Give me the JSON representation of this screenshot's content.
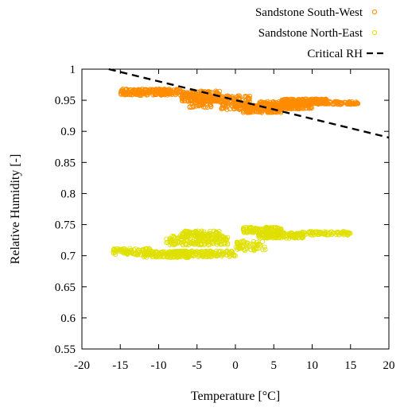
{
  "chart_data": {
    "type": "scatter",
    "xlabel": "Temperature [°C]",
    "ylabel": "Relative Humidity [-]",
    "xlim": [
      -20,
      20
    ],
    "ylim": [
      0.55,
      1.0
    ],
    "x_ticks": [
      -20,
      -15,
      -10,
      -5,
      0,
      5,
      10,
      15,
      20
    ],
    "y_ticks": [
      0.55,
      0.6,
      0.65,
      0.7,
      0.75,
      0.8,
      0.85,
      0.9,
      0.95,
      1
    ],
    "x_tick_labels": [
      "-20",
      "-15",
      "-10",
      "-5",
      "0",
      "5",
      "10",
      "15",
      "20"
    ],
    "y_tick_labels": [
      "0.55",
      "0.6",
      "0.65",
      "0.7",
      "0.75",
      "0.8",
      "0.85",
      "0.9",
      "0.95",
      "1"
    ],
    "grid": false,
    "legend_position": "top-right, outside plot",
    "series": [
      {
        "name": "Sandstone South-West",
        "color": "#ff8c00",
        "marker": "open-circle",
        "clusters": [
          {
            "x": [
              -15,
              -7
            ],
            "y": [
              0.958,
              0.968
            ],
            "n": 220
          },
          {
            "x": [
              -7,
              -2
            ],
            "y": [
              0.948,
              0.965
            ],
            "n": 200
          },
          {
            "x": [
              -6,
              -3
            ],
            "y": [
              0.938,
              0.953
            ],
            "n": 60
          },
          {
            "x": [
              -2,
              2
            ],
            "y": [
              0.935,
              0.958
            ],
            "n": 140
          },
          {
            "x": [
              1,
              6
            ],
            "y": [
              0.93,
              0.942
            ],
            "n": 160
          },
          {
            "x": [
              3,
              10
            ],
            "y": [
              0.936,
              0.948
            ],
            "n": 240
          },
          {
            "x": [
              6,
              12
            ],
            "y": [
              0.944,
              0.952
            ],
            "n": 160
          },
          {
            "x": [
              10,
              16
            ],
            "y": [
              0.943,
              0.948
            ],
            "n": 80
          }
        ]
      },
      {
        "name": "Sandstone North-East",
        "color": "#e0e000",
        "marker": "open-circle",
        "clusters": [
          {
            "x": [
              -16,
              -11
            ],
            "y": [
              0.701,
              0.712
            ],
            "n": 90
          },
          {
            "x": [
              -12,
              -6
            ],
            "y": [
              0.697,
              0.707
            ],
            "n": 130
          },
          {
            "x": [
              -8,
              0
            ],
            "y": [
              0.698,
              0.708
            ],
            "n": 150
          },
          {
            "x": [
              -9,
              -1
            ],
            "y": [
              0.717,
              0.732
            ],
            "n": 170
          },
          {
            "x": [
              -7,
              -2
            ],
            "y": [
              0.73,
              0.74
            ],
            "n": 80
          },
          {
            "x": [
              0,
              4
            ],
            "y": [
              0.708,
              0.724
            ],
            "n": 60
          },
          {
            "x": [
              1,
              6
            ],
            "y": [
              0.737,
              0.746
            ],
            "n": 120
          },
          {
            "x": [
              3,
              9
            ],
            "y": [
              0.728,
              0.738
            ],
            "n": 150
          },
          {
            "x": [
              8,
              15
            ],
            "y": [
              0.733,
              0.739
            ],
            "n": 90
          }
        ]
      }
    ],
    "lines": [
      {
        "name": "Critical RH",
        "style": "dashed",
        "color": "#000000",
        "x": [
          -16.5,
          20
        ],
        "y": [
          1.0,
          0.89
        ]
      }
    ]
  }
}
